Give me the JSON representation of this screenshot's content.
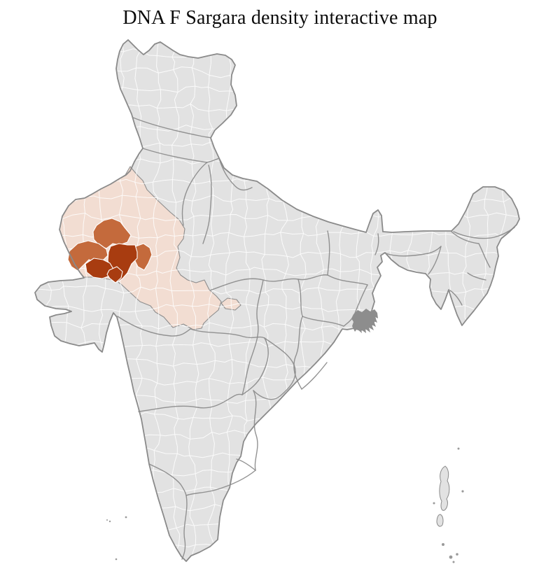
{
  "title": "DNA F Sargara density interactive map",
  "map": {
    "type": "choropleth",
    "palette": {
      "background": "#ffffff",
      "base_district": "#e2e2e2",
      "district_border": "#ffffff",
      "state_border": "#8c8c8c",
      "country_outline": "#8a8a8a",
      "density_low": "#f3ddd2",
      "density_medium": "#c46a3c",
      "density_high": "#a83c10",
      "delta_region": "#8d8d8d"
    },
    "density_levels": [
      {
        "label": "none",
        "color": "#e2e2e2"
      },
      {
        "label": "low",
        "color": "#f3ddd2"
      },
      {
        "label": "medium",
        "color": "#c46a3c"
      },
      {
        "label": "high",
        "color": "#a83c10"
      }
    ],
    "medium_district_count": 3,
    "high_district_count": 3
  }
}
